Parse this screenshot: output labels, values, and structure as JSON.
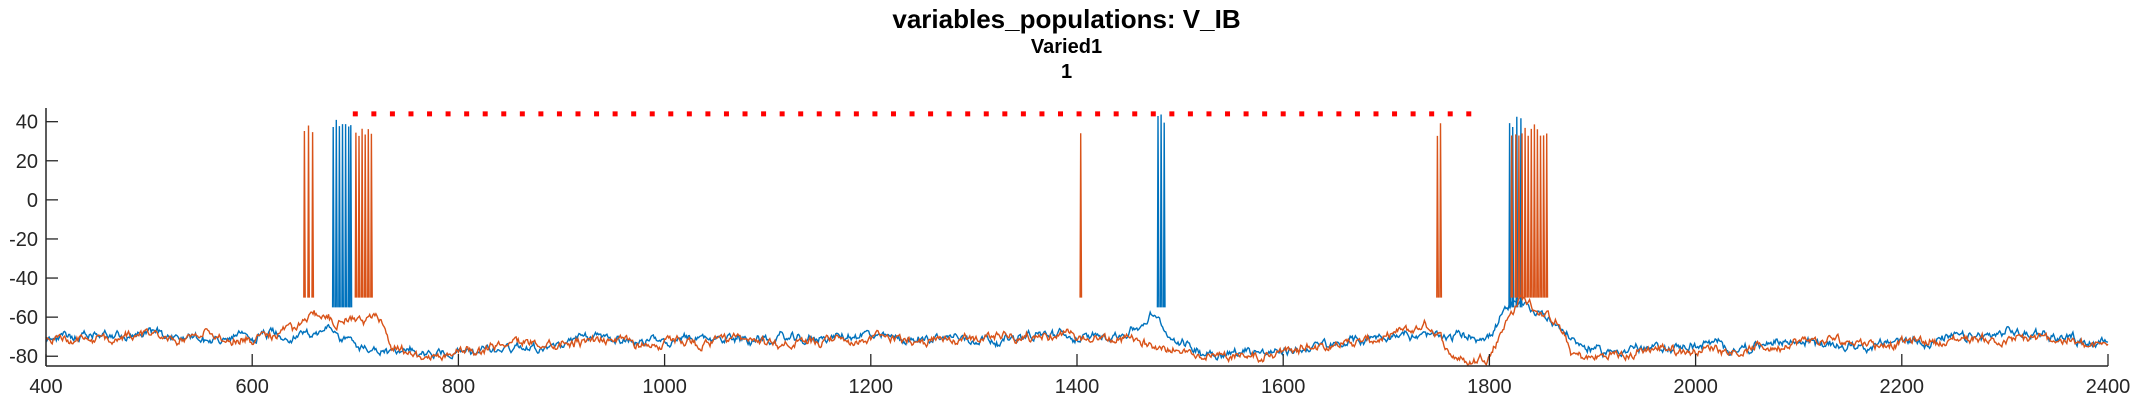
{
  "colors": {
    "series_blue": "#0072BD",
    "series_orange": "#D95319",
    "marker_red": "#FF0000",
    "axis": "#262626"
  },
  "chart_data": {
    "type": "line",
    "title": "variables_populations: V_IB",
    "subtitle": "Varied1",
    "subtitle2": "1",
    "xlabel": "",
    "ylabel": "",
    "xlim": [
      400,
      2400
    ],
    "ylim": [
      -85,
      47
    ],
    "grid": false,
    "xticks": [
      400,
      600,
      800,
      1000,
      1200,
      1400,
      1600,
      1800,
      2000,
      2200,
      2400
    ],
    "yticks": [
      -80,
      -60,
      -40,
      -20,
      0,
      20,
      40
    ],
    "raster_marker": {
      "color": "red",
      "y": 44,
      "x_start": 700,
      "x_end": 1780,
      "spacing": 18
    },
    "series": [
      {
        "color": "blue",
        "baseline": [
          [
            400,
            -71
          ],
          [
            450,
            -70
          ],
          [
            500,
            -69
          ],
          [
            550,
            -70
          ],
          [
            600,
            -70
          ],
          [
            640,
            -68
          ],
          [
            670,
            -66
          ],
          [
            690,
            -70
          ],
          [
            700,
            -76
          ],
          [
            730,
            -79
          ],
          [
            760,
            -80
          ],
          [
            800,
            -77
          ],
          [
            850,
            -74
          ],
          [
            900,
            -72
          ],
          [
            950,
            -71
          ],
          [
            1000,
            -72
          ],
          [
            1050,
            -73
          ],
          [
            1100,
            -71
          ],
          [
            1150,
            -71
          ],
          [
            1200,
            -71
          ],
          [
            1250,
            -70
          ],
          [
            1300,
            -69
          ],
          [
            1350,
            -70
          ],
          [
            1400,
            -70
          ],
          [
            1440,
            -69
          ],
          [
            1460,
            -65
          ],
          [
            1475,
            -60
          ],
          [
            1490,
            -72
          ],
          [
            1520,
            -78
          ],
          [
            1560,
            -77
          ],
          [
            1600,
            -76
          ],
          [
            1650,
            -74
          ],
          [
            1700,
            -71
          ],
          [
            1740,
            -69
          ],
          [
            1770,
            -68
          ],
          [
            1800,
            -70
          ],
          [
            1815,
            -58
          ],
          [
            1830,
            -54
          ],
          [
            1850,
            -58
          ],
          [
            1870,
            -66
          ],
          [
            1890,
            -76
          ],
          [
            1920,
            -77
          ],
          [
            1950,
            -75
          ],
          [
            2000,
            -75
          ],
          [
            2050,
            -75
          ],
          [
            2100,
            -74
          ],
          [
            2150,
            -72
          ],
          [
            2200,
            -72
          ],
          [
            2250,
            -71
          ],
          [
            2300,
            -70
          ],
          [
            2350,
            -70
          ],
          [
            2400,
            -72
          ]
        ],
        "spike_times": [
          678,
          681,
          684,
          687,
          690,
          693,
          695,
          1478,
          1481,
          1484,
          1819,
          1822,
          1826,
          1830
        ],
        "spike_peak": 40,
        "spike_trough": -55
      },
      {
        "color": "orange",
        "baseline": [
          [
            400,
            -72
          ],
          [
            450,
            -71
          ],
          [
            500,
            -71
          ],
          [
            550,
            -70
          ],
          [
            600,
            -72
          ],
          [
            640,
            -68
          ],
          [
            660,
            -58
          ],
          [
            680,
            -62
          ],
          [
            700,
            -64
          ],
          [
            720,
            -60
          ],
          [
            735,
            -76
          ],
          [
            760,
            -82
          ],
          [
            800,
            -80
          ],
          [
            850,
            -75
          ],
          [
            900,
            -74
          ],
          [
            950,
            -73
          ],
          [
            1000,
            -74
          ],
          [
            1050,
            -74
          ],
          [
            1100,
            -73
          ],
          [
            1150,
            -72
          ],
          [
            1200,
            -72
          ],
          [
            1250,
            -71
          ],
          [
            1300,
            -70
          ],
          [
            1350,
            -71
          ],
          [
            1395,
            -70
          ],
          [
            1410,
            -72
          ],
          [
            1450,
            -72
          ],
          [
            1490,
            -76
          ],
          [
            1520,
            -80
          ],
          [
            1560,
            -79
          ],
          [
            1600,
            -77
          ],
          [
            1650,
            -75
          ],
          [
            1700,
            -72
          ],
          [
            1740,
            -66
          ],
          [
            1760,
            -79
          ],
          [
            1780,
            -82
          ],
          [
            1800,
            -78
          ],
          [
            1815,
            -62
          ],
          [
            1830,
            -50
          ],
          [
            1850,
            -56
          ],
          [
            1865,
            -64
          ],
          [
            1880,
            -79
          ],
          [
            1900,
            -81
          ],
          [
            1950,
            -77
          ],
          [
            2000,
            -77
          ],
          [
            2050,
            -76
          ],
          [
            2100,
            -75
          ],
          [
            2150,
            -73
          ],
          [
            2200,
            -73
          ],
          [
            2250,
            -72
          ],
          [
            2300,
            -71
          ],
          [
            2350,
            -71
          ],
          [
            2400,
            -74
          ]
        ],
        "spike_times": [
          650,
          654,
          658,
          700,
          703,
          706,
          709,
          712,
          715,
          1403,
          1749,
          1752,
          1821,
          1825,
          1828,
          1831,
          1834,
          1837,
          1840,
          1843,
          1846,
          1849,
          1852,
          1855
        ],
        "spike_peak": 36,
        "spike_trough": -50
      }
    ]
  }
}
